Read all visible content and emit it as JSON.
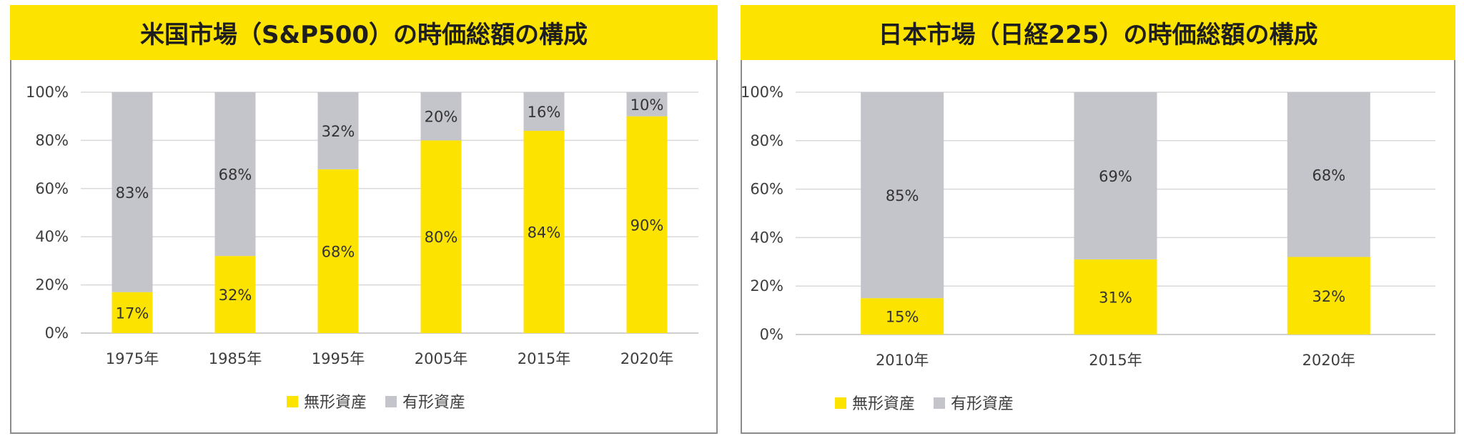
{
  "chart_data": [
    {
      "type": "bar",
      "stacked": true,
      "title": "米国市場（S&P500）の時価総額の構成",
      "categories": [
        "1975年",
        "1985年",
        "1995年",
        "2005年",
        "2015年",
        "2020年"
      ],
      "series": [
        {
          "name": "無形資産",
          "color": "#fde300",
          "values": [
            17,
            32,
            68,
            80,
            84,
            90
          ],
          "labels": [
            "17%",
            "32%",
            "68%",
            "80%",
            "84%",
            "90%"
          ]
        },
        {
          "name": "有形資産",
          "color": "#c4c4cb",
          "values": [
            83,
            68,
            32,
            20,
            16,
            10
          ],
          "labels": [
            "83%",
            "68%",
            "32%",
            "20%",
            "16%",
            "10%"
          ]
        }
      ],
      "ylim": [
        0,
        100
      ],
      "yticks": [
        "0%",
        "20%",
        "40%",
        "60%",
        "80%",
        "100%"
      ],
      "grid": true,
      "legend": "bottom"
    },
    {
      "type": "bar",
      "stacked": true,
      "title": "日本市場（日経225）の時価総額の構成",
      "categories": [
        "2010年",
        "2015年",
        "2020年"
      ],
      "series": [
        {
          "name": "無形資産",
          "color": "#fde300",
          "values": [
            15,
            31,
            32
          ],
          "labels": [
            "15%",
            "31%",
            "32%"
          ]
        },
        {
          "name": "有形資産",
          "color": "#c4c4cb",
          "values": [
            85,
            69,
            68
          ],
          "labels": [
            "85%",
            "69%",
            "68%"
          ]
        }
      ],
      "ylim": [
        0,
        100
      ],
      "yticks": [
        "0%",
        "20%",
        "40%",
        "60%",
        "80%",
        "100%"
      ],
      "grid": true,
      "legend": "bottom"
    }
  ]
}
